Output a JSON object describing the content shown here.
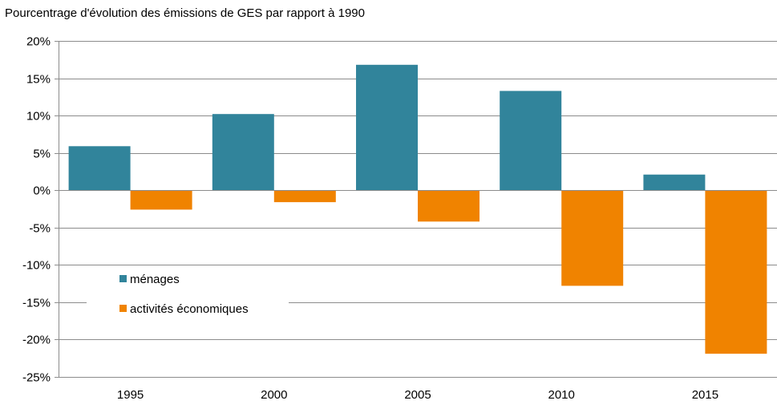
{
  "chart_data": {
    "type": "bar",
    "title": "Pourcentrage  d'évolution  des émissions de GES par rapport à  1990",
    "xlabel": "",
    "ylabel": "",
    "categories": [
      "1995",
      "2000",
      "2005",
      "2010",
      "2015"
    ],
    "series": [
      {
        "name": "ménages",
        "color": "#31849B",
        "values": [
          5.9,
          10.2,
          16.8,
          13.3,
          2.1
        ]
      },
      {
        "name": "activités économiques",
        "color": "#F08300",
        "values": [
          -2.6,
          -1.6,
          -4.2,
          -12.8,
          -21.9
        ]
      }
    ],
    "ylim": [
      -25,
      20
    ],
    "yticks": [
      20,
      15,
      10,
      5,
      0,
      -5,
      -10,
      -15,
      -20,
      -25
    ],
    "ytick_labels": [
      "20%",
      "15%",
      "10%",
      "5%",
      "0%",
      "-5%",
      "-10%",
      "-15%",
      "-20%",
      "-25%"
    ],
    "grid": true,
    "legend_position": "center-left"
  }
}
